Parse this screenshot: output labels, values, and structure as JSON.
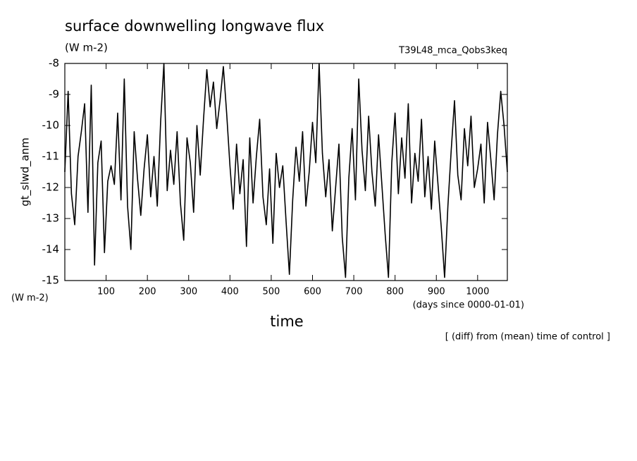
{
  "chart_data": {
    "type": "line",
    "title": "surface downwelling longwave flux",
    "units": "(W m-2)",
    "run_label": "T39L48_mca_Qobs3keq",
    "ylabel": "gt_slwd_anm",
    "yunits": "(W m-2)",
    "xlabel": "time",
    "xunits": "(days since 0000-01-01)",
    "note": "[ (diff) from (mean) time of control ]",
    "xlim": [
      0,
      1072
    ],
    "ylim": [
      -15,
      -8
    ],
    "xticks": [
      100,
      200,
      300,
      400,
      500,
      600,
      700,
      800,
      900,
      1000
    ],
    "yticks": [
      -8,
      -9,
      -10,
      -11,
      -12,
      -13,
      -14,
      -15
    ],
    "x": [
      0,
      8,
      16,
      24,
      32,
      40,
      48,
      56,
      64,
      72,
      80,
      88,
      96,
      104,
      112,
      120,
      128,
      136,
      144,
      152,
      160,
      168,
      176,
      184,
      192,
      200,
      208,
      216,
      224,
      232,
      240,
      248,
      256,
      264,
      272,
      280,
      288,
      296,
      304,
      312,
      320,
      328,
      336,
      344,
      352,
      360,
      368,
      376,
      384,
      392,
      400,
      408,
      416,
      424,
      432,
      440,
      448,
      456,
      464,
      472,
      480,
      488,
      496,
      504,
      512,
      520,
      528,
      536,
      544,
      552,
      560,
      568,
      576,
      584,
      592,
      600,
      608,
      616,
      624,
      632,
      640,
      648,
      656,
      664,
      672,
      680,
      688,
      696,
      704,
      712,
      720,
      728,
      736,
      744,
      752,
      760,
      768,
      776,
      784,
      792,
      800,
      808,
      816,
      824,
      832,
      840,
      848,
      856,
      864,
      872,
      880,
      888,
      896,
      904,
      912,
      920,
      928,
      936,
      944,
      952,
      960,
      968,
      976,
      984,
      992,
      1000,
      1008,
      1016,
      1024,
      1032,
      1040,
      1048,
      1056,
      1064,
      1072
    ],
    "series": [
      {
        "color": "#000000",
        "values": [
          -11.5,
          -8.9,
          -12.2,
          -13.2,
          -11.0,
          -10.2,
          -9.3,
          -12.8,
          -8.7,
          -14.5,
          -11.2,
          -10.5,
          -14.1,
          -11.8,
          -11.3,
          -11.9,
          -9.6,
          -12.4,
          -8.5,
          -12.6,
          -14.0,
          -10.2,
          -11.7,
          -12.9,
          -11.4,
          -10.3,
          -12.3,
          -11.0,
          -12.6,
          -9.9,
          -8.0,
          -12.1,
          -10.8,
          -11.9,
          -10.2,
          -12.5,
          -13.7,
          -10.4,
          -11.2,
          -12.8,
          -10.0,
          -11.6,
          -9.8,
          -8.2,
          -9.4,
          -8.6,
          -10.1,
          -9.2,
          -8.1,
          -9.6,
          -11.3,
          -12.7,
          -10.6,
          -12.2,
          -11.1,
          -13.9,
          -10.4,
          -12.5,
          -11.0,
          -9.8,
          -12.3,
          -13.2,
          -11.4,
          -13.8,
          -10.9,
          -12.0,
          -11.3,
          -13.1,
          -14.8,
          -12.4,
          -10.7,
          -11.8,
          -10.2,
          -12.6,
          -11.5,
          -9.9,
          -11.2,
          -8.0,
          -10.9,
          -12.3,
          -11.1,
          -13.4,
          -12.0,
          -10.6,
          -13.6,
          -14.9,
          -11.7,
          -10.1,
          -12.4,
          -8.5,
          -10.8,
          -12.1,
          -9.7,
          -11.5,
          -12.6,
          -10.3,
          -11.9,
          -13.5,
          -14.9,
          -11.2,
          -9.6,
          -12.2,
          -10.4,
          -11.7,
          -9.3,
          -12.5,
          -10.9,
          -11.8,
          -9.8,
          -12.3,
          -11.0,
          -12.7,
          -10.5,
          -11.9,
          -13.3,
          -14.9,
          -12.6,
          -10.8,
          -9.2,
          -11.6,
          -12.4,
          -10.1,
          -11.3,
          -9.7,
          -12.0,
          -11.4,
          -10.6,
          -12.5,
          -9.9,
          -11.1,
          -12.4,
          -10.3,
          -8.9,
          -10.0,
          -11.5
        ]
      }
    ]
  }
}
